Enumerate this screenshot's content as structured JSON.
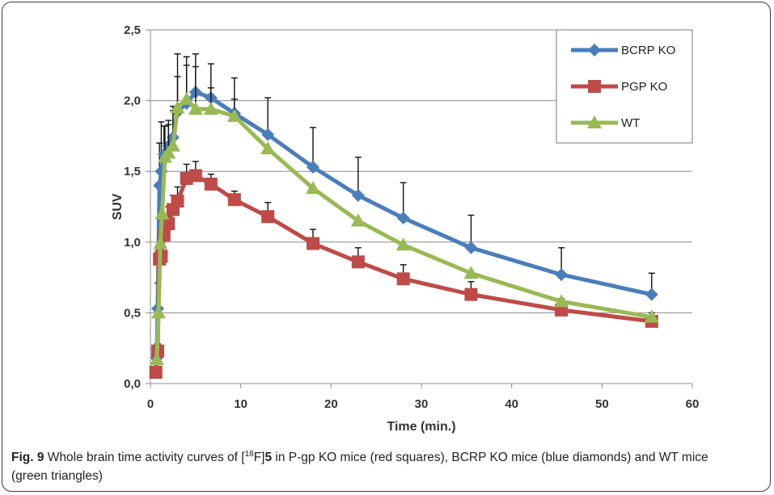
{
  "chart_data": {
    "type": "line",
    "title": "",
    "xlabel": "Time (min.)",
    "ylabel": "SUV",
    "xlim": [
      0,
      60
    ],
    "ylim": [
      0.0,
      2.5
    ],
    "x_ticks": [
      "0",
      "10",
      "20",
      "30",
      "40",
      "50",
      "60"
    ],
    "y_ticks": [
      "0,0",
      "0,5",
      "1,0",
      "1,5",
      "2,0",
      "2,5"
    ],
    "grid": "horizontal",
    "legend_position": "top-right",
    "series": [
      {
        "name": "BCRP KO",
        "color": "#4a7ebb",
        "marker": "diamond",
        "x": [
          0.7,
          0.8,
          1.0,
          1.2,
          1.5,
          2.0,
          2.5,
          3.0,
          4.0,
          5.0,
          6.7,
          9.3,
          13.0,
          18.0,
          23.0,
          28.0,
          35.5,
          45.5,
          55.5
        ],
        "y": [
          0.18,
          0.53,
          1.4,
          1.5,
          1.62,
          1.68,
          1.74,
          1.92,
          1.98,
          2.06,
          2.02,
          1.91,
          1.76,
          1.53,
          1.33,
          1.17,
          0.96,
          0.77,
          0.63
        ],
        "err": [
          0.0,
          0.18,
          0.3,
          0.35,
          0.2,
          0.18,
          0.22,
          0.25,
          0.27,
          0.27,
          0.24,
          0.25,
          0.26,
          0.28,
          0.27,
          0.25,
          0.23,
          0.19,
          0.15
        ]
      },
      {
        "name": "PGP KO",
        "color": "#be4b48",
        "marker": "square",
        "x": [
          0.6,
          0.8,
          1.0,
          1.2,
          1.5,
          2.0,
          2.5,
          3.0,
          4.0,
          5.0,
          6.7,
          9.3,
          13.0,
          18.0,
          23.0,
          28.0,
          35.5,
          45.5,
          55.5
        ],
        "y": [
          0.08,
          0.23,
          0.88,
          0.9,
          1.05,
          1.13,
          1.23,
          1.29,
          1.45,
          1.47,
          1.41,
          1.3,
          1.18,
          0.99,
          0.86,
          0.74,
          0.63,
          0.52,
          0.44
        ],
        "err": [
          0.0,
          0.05,
          0.1,
          0.12,
          0.1,
          0.12,
          0.1,
          0.1,
          0.1,
          0.1,
          0.07,
          0.06,
          0.1,
          0.1,
          0.1,
          0.1,
          0.09,
          0.08,
          0.06
        ]
      },
      {
        "name": "WT",
        "color": "#98b954",
        "marker": "triangle",
        "x": [
          0.7,
          0.9,
          1.1,
          1.3,
          1.6,
          2.0,
          2.5,
          3.0,
          4.0,
          5.0,
          6.7,
          9.3,
          13.0,
          18.0,
          23.0,
          28.0,
          35.5,
          45.5,
          55.5
        ],
        "y": [
          0.17,
          0.5,
          0.99,
          1.2,
          1.6,
          1.63,
          1.68,
          1.95,
          2.01,
          1.94,
          1.94,
          1.89,
          1.66,
          1.38,
          1.15,
          0.98,
          0.78,
          0.58,
          0.47
        ],
        "err": [
          0.0,
          0.0,
          0.0,
          0.0,
          0.22,
          0.2,
          0.25,
          0.38,
          0.3,
          0.3,
          0.15,
          0.12,
          0.0,
          0.0,
          0.0,
          0.0,
          0.0,
          0.0,
          0.0
        ]
      }
    ]
  },
  "caption": {
    "label": "Fig. 9",
    "text_before": " Whole brain time activity curves of [",
    "isotope_sup": "18",
    "text_f": "F]",
    "compound": "5",
    "text_after": " in P-gp KO mice (red squares), BCRP KO mice (blue diamonds) and WT mice (green triangles)"
  }
}
